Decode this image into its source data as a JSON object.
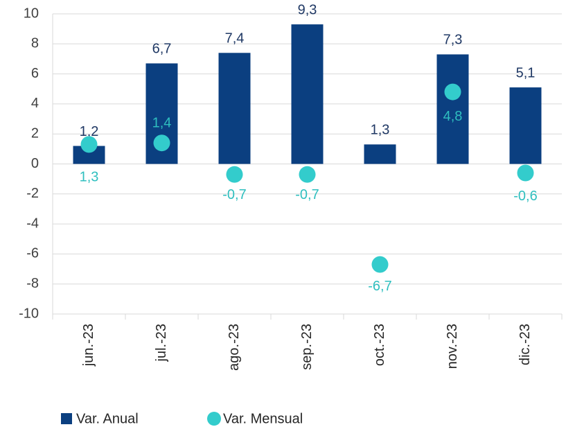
{
  "chart_data": {
    "type": "bar+scatter",
    "categories": [
      "jun.-23",
      "jul.-23",
      "ago.-23",
      "sep.-23",
      "oct.-23",
      "nov.-23",
      "dic.-23"
    ],
    "series": [
      {
        "name": "Var. Anual",
        "type": "bar",
        "color": "#0b3f80",
        "values": [
          1.2,
          6.7,
          7.4,
          9.3,
          1.3,
          7.3,
          5.1
        ],
        "value_labels": [
          "1,2",
          "6,7",
          "7,4",
          "9,3",
          "1,3",
          "7,3",
          "5,1"
        ]
      },
      {
        "name": "Var. Mensual",
        "type": "scatter",
        "color": "#33cccc",
        "values": [
          1.3,
          1.4,
          -0.7,
          -0.7,
          -6.7,
          4.8,
          -0.6
        ],
        "value_labels": [
          "1,3",
          "1,4",
          "-0,7",
          "-0,7",
          "-6,7",
          "4,8",
          "-0,6"
        ]
      }
    ],
    "ylim": [
      -10,
      10
    ],
    "yticks": [
      -10,
      -8,
      -6,
      -4,
      -2,
      0,
      2,
      4,
      6,
      8,
      10
    ],
    "grid": true
  }
}
